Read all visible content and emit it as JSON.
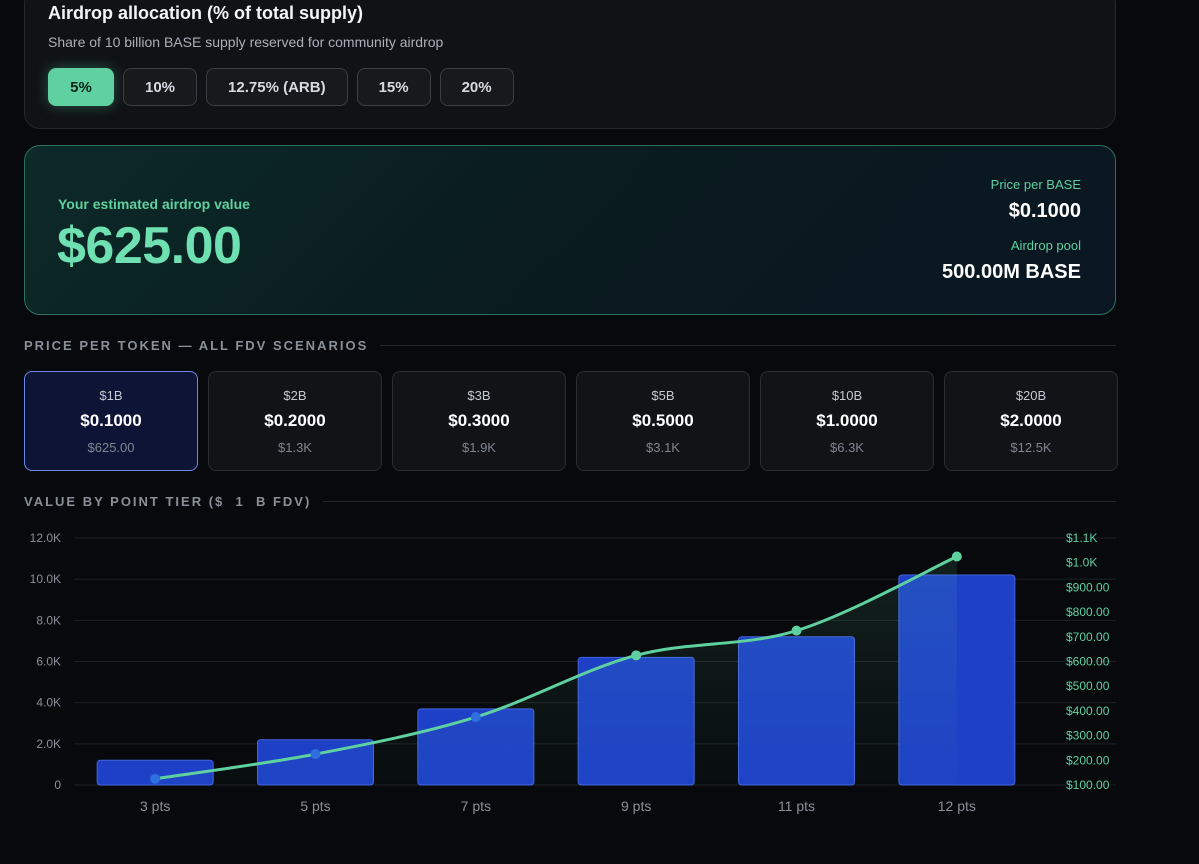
{
  "allocation": {
    "title": "Airdrop allocation (% of total supply)",
    "subtitle": "Share of 10 billion BASE supply reserved for community airdrop",
    "options": [
      "5%",
      "10%",
      "12.75% (ARB)",
      "15%",
      "20%"
    ],
    "selected": "5%"
  },
  "estimate": {
    "label": "Your estimated airdrop value",
    "value": "$625.00",
    "price_label": "Price per BASE",
    "price_value": "$0.1000",
    "pool_label": "Airdrop pool",
    "pool_value": "500.00M BASE"
  },
  "scenarios": {
    "heading": "PRICE PER TOKEN — ALL FDV SCENARIOS",
    "items": [
      {
        "fdv": "$1B",
        "price": "$0.1000",
        "value": "$625.00"
      },
      {
        "fdv": "$2B",
        "price": "$0.2000",
        "value": "$1.3K"
      },
      {
        "fdv": "$3B",
        "price": "$0.3000",
        "value": "$1.9K"
      },
      {
        "fdv": "$5B",
        "price": "$0.5000",
        "value": "$3.1K"
      },
      {
        "fdv": "$10B",
        "price": "$1.0000",
        "value": "$6.3K"
      },
      {
        "fdv": "$20B",
        "price": "$2.0000",
        "value": "$12.5K"
      }
    ]
  },
  "tier": {
    "heading": "VALUE BY POINT TIER ($  1  B FDV)"
  },
  "chart_data": {
    "type": "bar",
    "categories": [
      "3 pts",
      "5 pts",
      "7 pts",
      "9 pts",
      "11 pts",
      "12 pts"
    ],
    "series": [
      {
        "type": "bar",
        "axis": "left",
        "values": [
          1200,
          2200,
          3700,
          6200,
          7200,
          10200
        ]
      },
      {
        "type": "line",
        "axis": "right",
        "values": [
          125,
          225,
          375,
          625,
          725,
          1025
        ]
      }
    ],
    "y_left": {
      "ticks": [
        "0",
        "2.0K",
        "4.0K",
        "6.0K",
        "8.0K",
        "10.0K",
        "12.0K"
      ],
      "range": [
        0,
        12000
      ]
    },
    "y_right": {
      "ticks": [
        "$100.00",
        "$200.00",
        "$300.00",
        "$400.00",
        "$500.00",
        "$600.00",
        "$700.00",
        "$800.00",
        "$900.00",
        "$1.0K",
        "$1.1K"
      ],
      "range": [
        100,
        1100
      ]
    },
    "grid": true,
    "colors": {
      "bar": "#1f45d6",
      "bar_border": "#4a6df0",
      "line": "#5fd0a0",
      "line_low": "#2f6fe0"
    }
  }
}
